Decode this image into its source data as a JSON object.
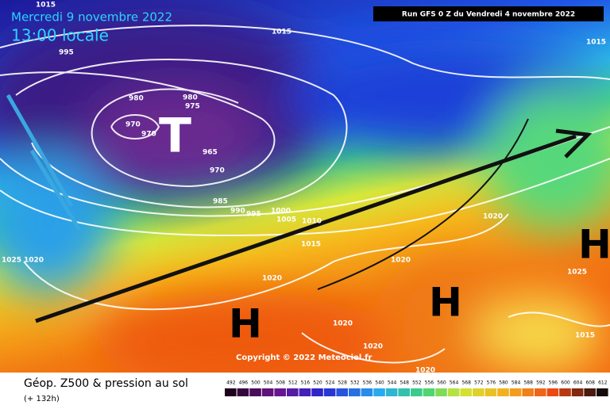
{
  "header": {
    "date": "Mercredi 9 novembre 2022",
    "time": "13:00 locale",
    "run": "Run GFS 0 Z du Vendredi 4 novembre 2022"
  },
  "footer": {
    "title": "Géop. Z500 & pression au sol",
    "lead": "(+ 132h)",
    "copyright": "Copyright © 2022 Meteociel.fr"
  },
  "centers": [
    "T",
    "H",
    "H",
    "H"
  ],
  "isobars": [
    1015,
    995,
    1015,
    1015,
    980,
    980,
    975,
    970,
    970,
    965,
    970,
    985,
    990,
    995,
    1000,
    1005,
    1010,
    1015,
    1020,
    1020,
    1025,
    1020,
    1020,
    1025,
    1020,
    1020,
    1015,
    1020
  ],
  "scale": [
    492,
    496,
    500,
    504,
    508,
    512,
    516,
    520,
    524,
    528,
    532,
    536,
    540,
    544,
    548,
    552,
    556,
    560,
    564,
    568,
    572,
    576,
    580,
    584,
    588,
    592,
    596,
    600,
    604,
    608,
    612
  ]
}
